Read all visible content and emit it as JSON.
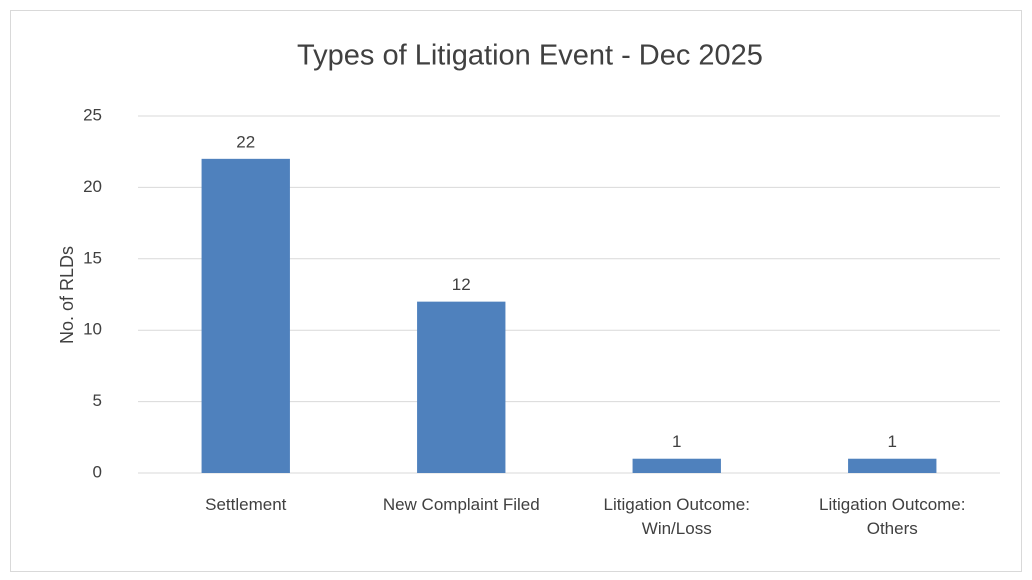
{
  "chart_data": {
    "type": "bar",
    "title": "Types of Litigation Event - Dec 2025",
    "y_label": "No. of RLDs",
    "categories": [
      "Settlement",
      "New Complaint Filed",
      "Litigation Outcome: Win/Loss",
      "Litigation Outcome: Others"
    ],
    "values": [
      22,
      12,
      1,
      1
    ],
    "color": "#4f81bd",
    "ylim": [
      0,
      25
    ],
    "yticks": [
      0,
      5,
      10,
      15,
      20,
      25
    ],
    "grid": true,
    "data_labels": true
  }
}
